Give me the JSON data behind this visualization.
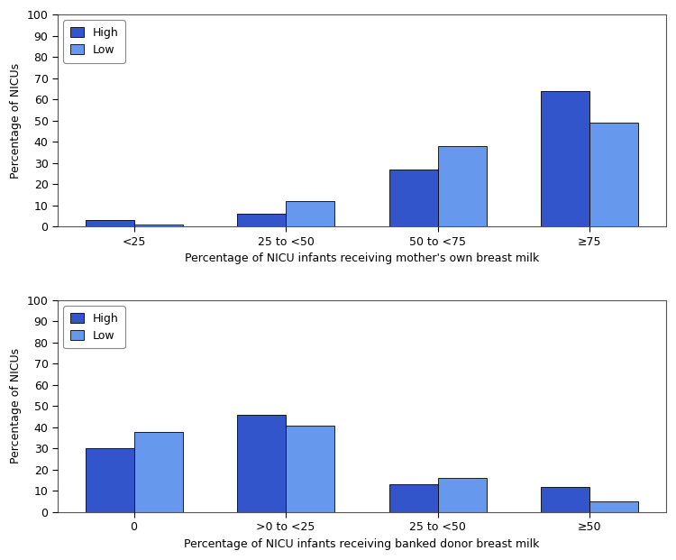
{
  "top": {
    "categories": [
      "<25",
      "25 to <50",
      "50 to <75",
      "≥75"
    ],
    "high_values": [
      3,
      6,
      27,
      64
    ],
    "low_values": [
      1,
      12,
      38,
      49
    ],
    "xlabel": "Percentage of NICU infants receiving mother's own breast milk",
    "ylabel": "Percentage of NICUs",
    "ylim": [
      0,
      100
    ],
    "yticks": [
      0,
      10,
      20,
      30,
      40,
      50,
      60,
      70,
      80,
      90,
      100
    ]
  },
  "bottom": {
    "categories": [
      "0",
      ">0 to <25",
      "25 to <50",
      "≥50"
    ],
    "high_values": [
      30,
      46,
      13,
      12
    ],
    "low_values": [
      38,
      41,
      16,
      5
    ],
    "xlabel": "Percentage of NICU infants receiving banked donor breast milk",
    "ylabel": "Percentage of NICUs",
    "ylim": [
      0,
      100
    ],
    "yticks": [
      0,
      10,
      20,
      30,
      40,
      50,
      60,
      70,
      80,
      90,
      100
    ]
  },
  "color_high": "#3355CC",
  "color_low": "#6699EE",
  "bar_width": 0.32,
  "legend_labels": [
    "High",
    "Low"
  ],
  "background_color": "#FFFFFF",
  "edge_color": "#000000",
  "figure_width": 7.5,
  "figure_height": 6.21,
  "dpi": 100
}
